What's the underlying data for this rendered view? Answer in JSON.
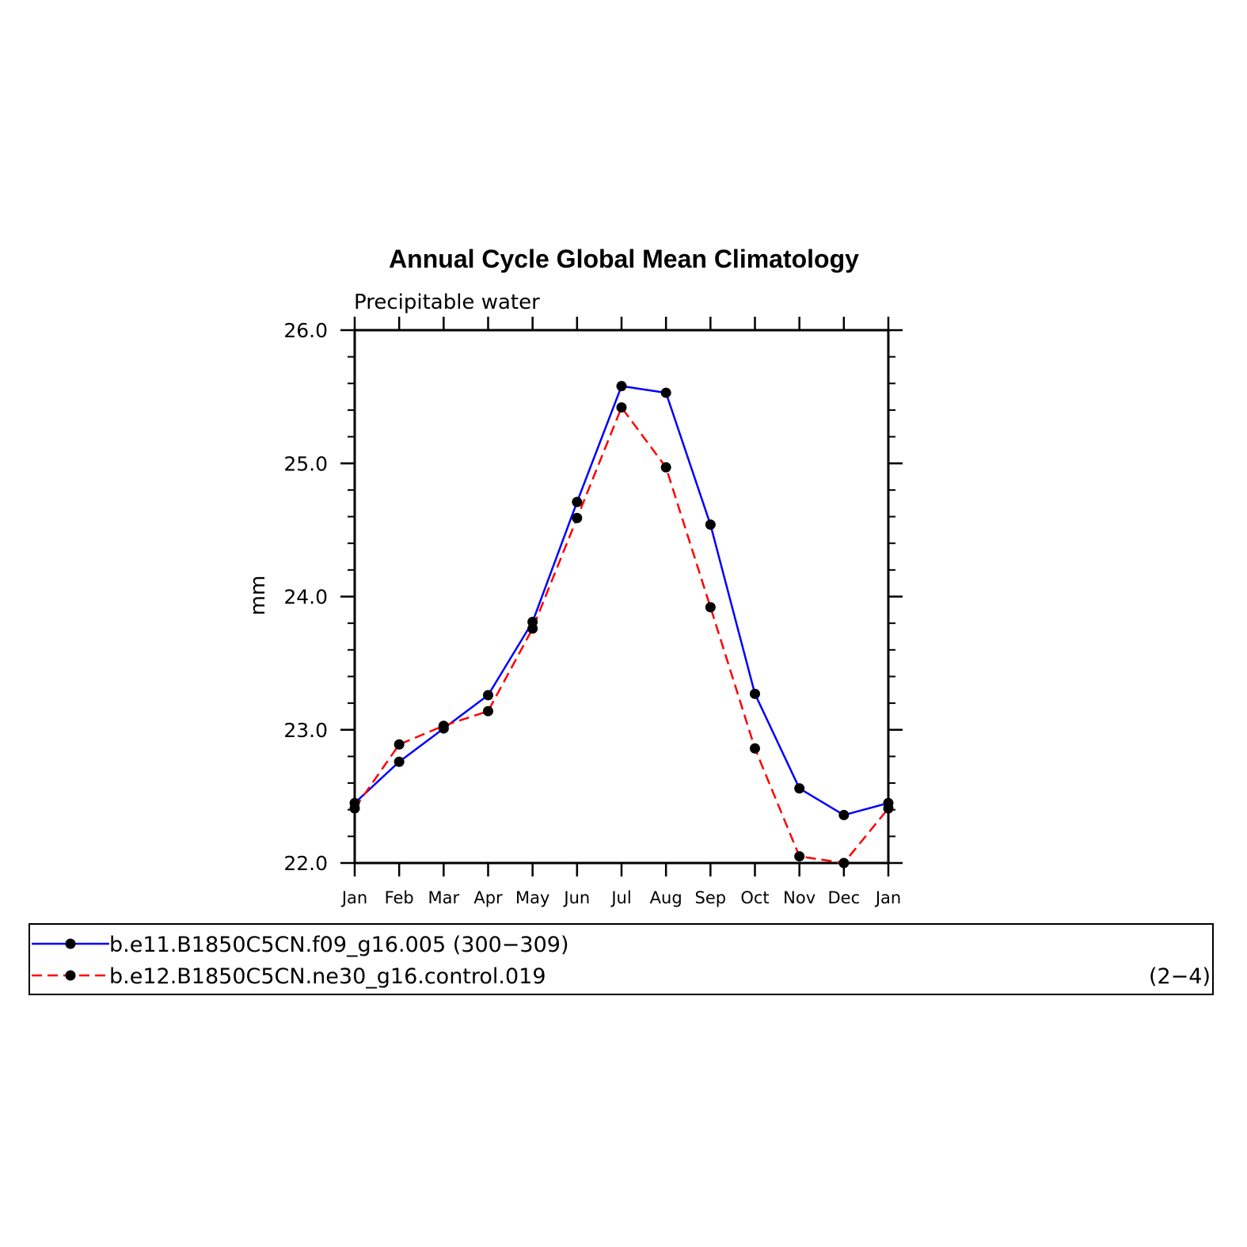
{
  "chart_data": {
    "type": "line",
    "title": "Annual Cycle Global Mean Climatology",
    "subtitle": "Precipitable water",
    "ylabel": "mm",
    "ylim": [
      22.0,
      26.0
    ],
    "yticks": [
      "22.0",
      "23.0",
      "24.0",
      "25.0",
      "26.0"
    ],
    "categories": [
      "Jan",
      "Feb",
      "Mar",
      "Apr",
      "May",
      "Jun",
      "Jul",
      "Aug",
      "Sep",
      "Oct",
      "Nov",
      "Dec",
      "Jan"
    ],
    "grid": false,
    "legend_position": "bottom",
    "series": [
      {
        "name": "b.e11.B1850C5CN.f09_g16.005 (300−309)",
        "color": "#0000ff",
        "dash": "solid",
        "values": [
          22.45,
          22.76,
          23.01,
          23.26,
          23.81,
          24.71,
          25.58,
          25.53,
          24.54,
          23.27,
          22.56,
          22.36,
          22.45
        ]
      },
      {
        "name": "b.e12.B1850C5CN.ne30_g16.control.019",
        "name_suffix": "(2−4)",
        "color": "#ff0000",
        "dash": "dashed",
        "values": [
          22.41,
          22.89,
          23.03,
          23.14,
          23.76,
          24.59,
          25.42,
          24.97,
          23.92,
          22.86,
          22.05,
          22.0,
          22.41
        ]
      }
    ]
  }
}
